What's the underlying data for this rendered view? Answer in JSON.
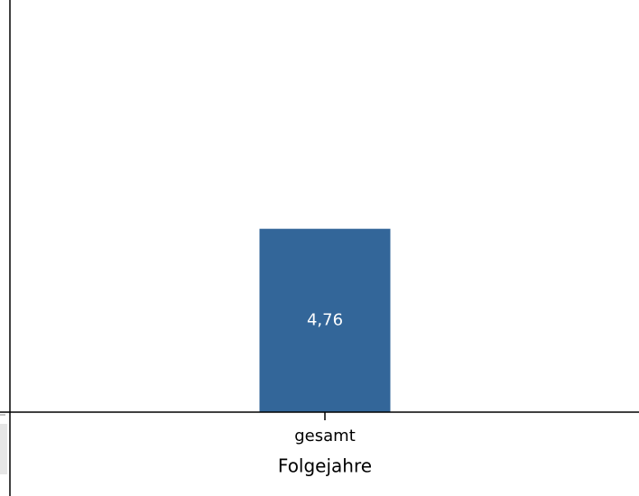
{
  "chart_data": {
    "type": "bar",
    "x_label": "Folgejahre",
    "categories": [
      "gesamt"
    ],
    "values": [
      4.76
    ],
    "value_labels": [
      "4,76"
    ],
    "color": "#336699",
    "ylim": [
      0,
      10.7
    ]
  }
}
